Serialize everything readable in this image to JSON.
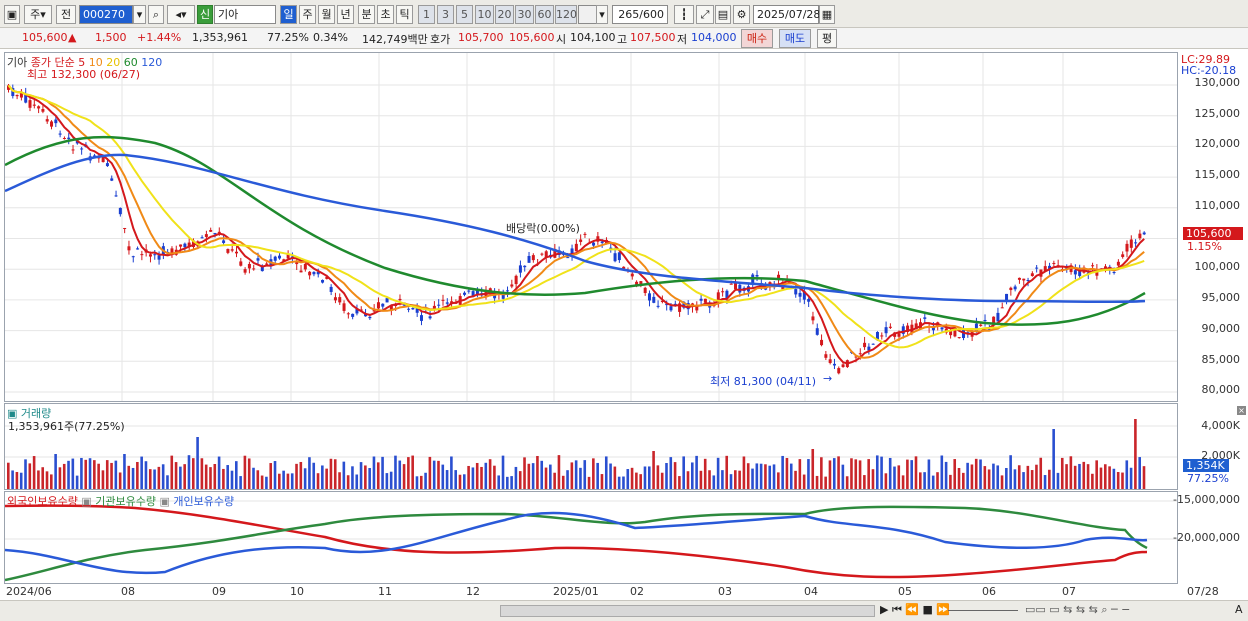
{
  "toolbar": {
    "period_select": "주",
    "prev_label": "전",
    "code": "000270",
    "name": "기아",
    "credit_badge": "신",
    "tabs": [
      "일",
      "주",
      "월",
      "년",
      "분",
      "초",
      "틱"
    ],
    "intervals": [
      "1",
      "3",
      "5",
      "10",
      "20",
      "30",
      "60",
      "120"
    ],
    "count": "265",
    "count_total": "/600",
    "date": "2025/07/28"
  },
  "quote": {
    "price": "105,600",
    "change": "1,500",
    "change_pct": "+1.44%",
    "volume": "1,353,961",
    "vol_ratio": "77.25%",
    "turnover": "0.34%",
    "amount": "142,749백만",
    "ask_label": "호가",
    "ask": "105,700",
    "bid": "105,600",
    "open_label": "시",
    "open": "104,100",
    "high_label": "고",
    "high": "107,500",
    "low_label": "저",
    "low": "104,000",
    "buy_label": "매수",
    "sell_label": "매도",
    "eval_label": "평"
  },
  "price_panel": {
    "name": "기아",
    "ma_label": "종가 단순",
    "ma_periods": [
      "5",
      "10",
      "20",
      "60",
      "120"
    ],
    "ma_colors": [
      "#d4181c",
      "#f08a17",
      "#f0e21a",
      "#1f8a2e",
      "#2a5ad8"
    ],
    "high_note": "최고 132,300 (06/27)",
    "low_note": "최저 81,300 (04/11)",
    "dividend_note": "배당락(0.00%)",
    "lc": "LC:29.89",
    "hc": "HC:-20.18",
    "y_ticks": [
      "130,000",
      "125,000",
      "120,000",
      "115,000",
      "110,000",
      "105,000",
      "100,000",
      "95,000",
      "90,000",
      "85,000",
      "80,000"
    ],
    "last_price": "105,600",
    "last_pct": "1.15%"
  },
  "volume_panel": {
    "title": "거래량",
    "value": "1,353,961주(77.25%)",
    "y_ticks": [
      "4,000K",
      "2,000K"
    ],
    "last": "1,354K",
    "last_pct": "77.25%"
  },
  "holdings_panel": {
    "legend": [
      "외국인보유수량",
      "기관보유수량",
      "개인보유수량"
    ],
    "colors": [
      "#d4181c",
      "#2e8a3e",
      "#2a5ad8"
    ],
    "y_ticks": [
      "-15,000,000",
      "-20,000,000"
    ]
  },
  "x_axis": [
    "2024/06",
    "08",
    "09",
    "10",
    "11",
    "12",
    "2025/01",
    "02",
    "03",
    "04",
    "05",
    "06",
    "07",
    "07/28"
  ],
  "colors": {
    "up": "#d4181c",
    "down": "#1a3fd0",
    "accent": "#1f5fd0"
  }
}
